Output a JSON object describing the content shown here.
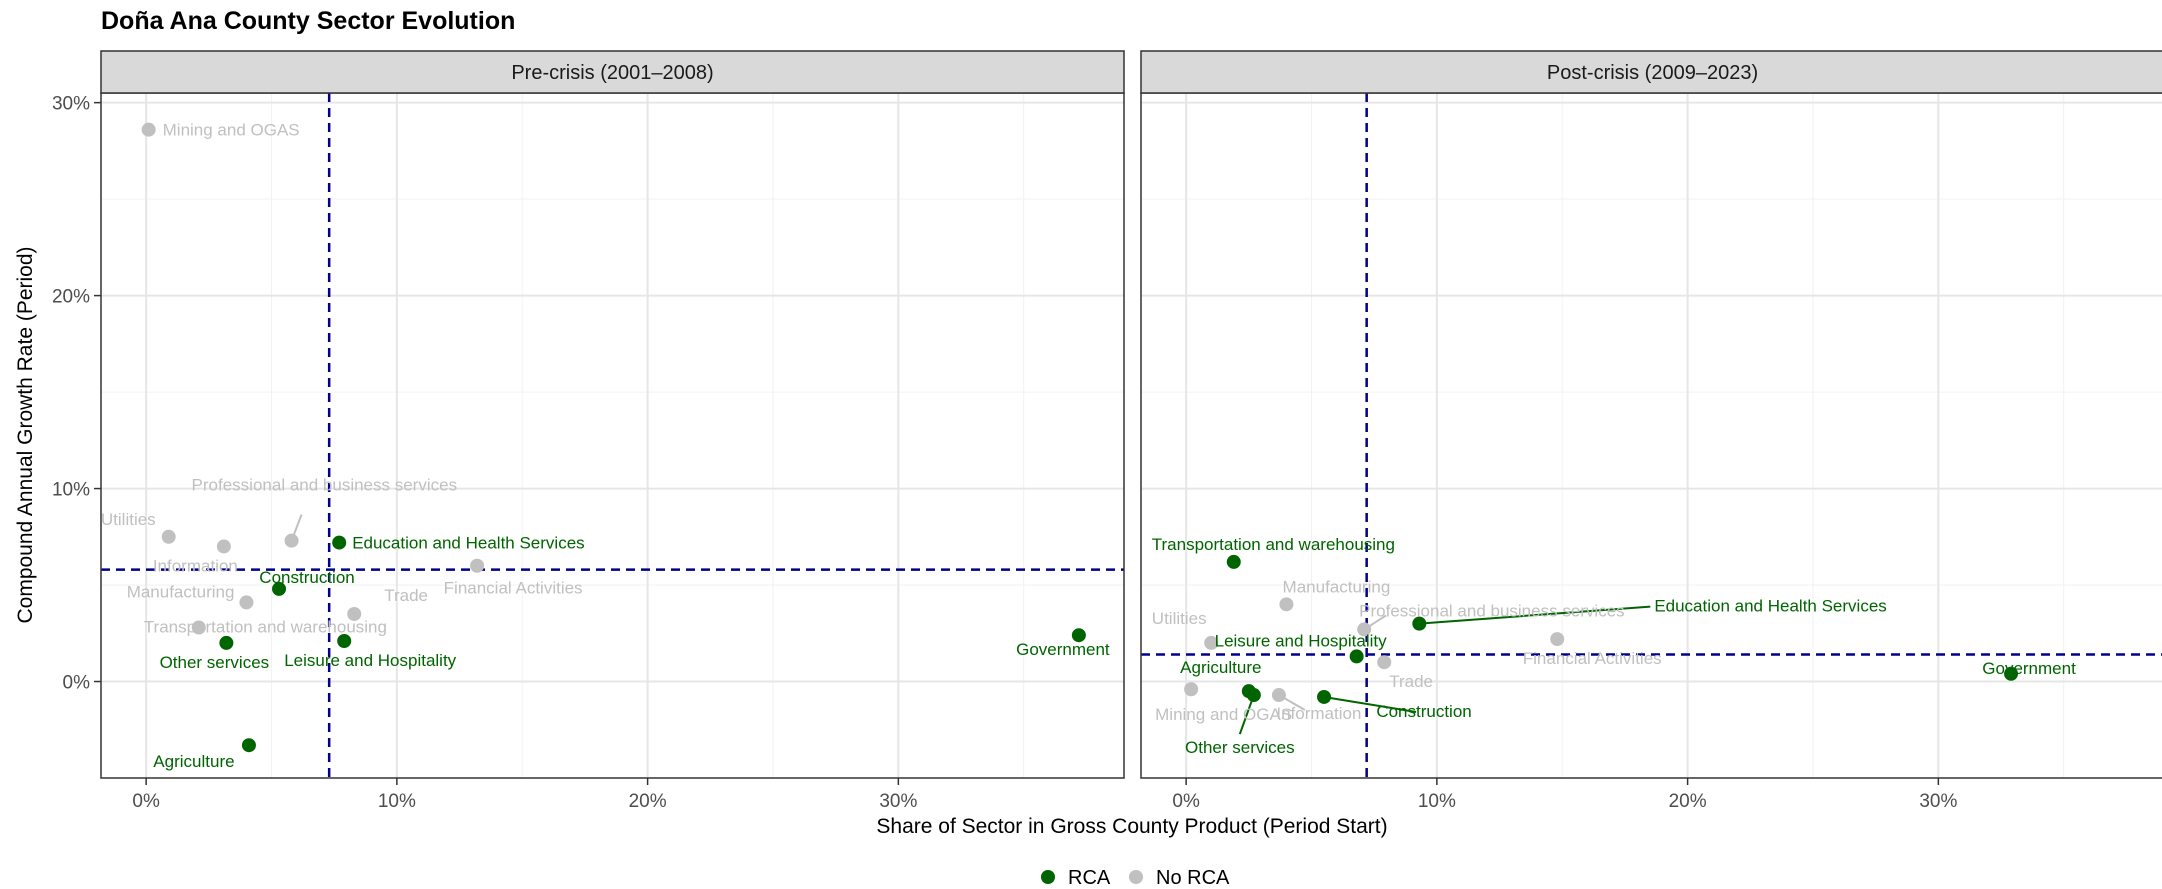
{
  "chart_data": {
    "type": "scatter",
    "title": "Doña Ana County Sector Evolution",
    "xlabel": "Share of Sector in Gross County Product (Period Start)",
    "ylabel": "Compound Annual Growth Rate (Period)",
    "x_ticks": [
      0,
      10,
      20,
      30
    ],
    "x_tick_labels": [
      "0%",
      "10%",
      "20%",
      "30%"
    ],
    "y_ticks": [
      0,
      10,
      20,
      30
    ],
    "y_tick_labels": [
      "0%",
      "10%",
      "20%",
      "30%"
    ],
    "xlim": [
      -1.8,
      39
    ],
    "ylim": [
      -5,
      30.5
    ],
    "grid": true,
    "legend": {
      "position": "bottom",
      "entries": [
        {
          "label": "RCA",
          "color": "#006400"
        },
        {
          "label": "No RCA",
          "color": "#c0c0c0"
        }
      ]
    },
    "colors": {
      "RCA": "#006400",
      "No RCA": "#c0c0c0",
      "reference_line": "#00008b"
    },
    "panels": [
      {
        "name": "Pre-crisis (2001–2008)",
        "ref_x": 7.3,
        "ref_y": 5.8,
        "points": [
          {
            "label": "Mining and OGAS",
            "x": 0.1,
            "y": 28.6,
            "group": "No RCA"
          },
          {
            "label": "Utilities",
            "x": 0.9,
            "y": 7.5,
            "group": "No RCA"
          },
          {
            "label": "Information",
            "x": 3.1,
            "y": 7.0,
            "group": "No RCA"
          },
          {
            "label": "Professional and business services",
            "x": 5.8,
            "y": 7.3,
            "group": "No RCA"
          },
          {
            "label": "Education and Health Services",
            "x": 7.7,
            "y": 7.2,
            "group": "RCA"
          },
          {
            "label": "Financial Activities",
            "x": 13.2,
            "y": 6.0,
            "group": "No RCA"
          },
          {
            "label": "Construction",
            "x": 5.3,
            "y": 4.8,
            "group": "RCA"
          },
          {
            "label": "Manufacturing",
            "x": 4.0,
            "y": 4.1,
            "group": "No RCA"
          },
          {
            "label": "Trade",
            "x": 8.3,
            "y": 3.5,
            "group": "No RCA"
          },
          {
            "label": "Transportation and warehousing",
            "x": 2.1,
            "y": 2.8,
            "group": "No RCA"
          },
          {
            "label": "Other services",
            "x": 3.2,
            "y": 2.0,
            "group": "RCA"
          },
          {
            "label": "Leisure and Hospitality",
            "x": 7.9,
            "y": 2.1,
            "group": "RCA"
          },
          {
            "label": "Government",
            "x": 37.2,
            "y": 2.4,
            "group": "RCA"
          },
          {
            "label": "Agriculture",
            "x": 4.1,
            "y": -3.3,
            "group": "RCA"
          }
        ]
      },
      {
        "name": "Post-crisis (2009–2023)",
        "ref_x": 7.2,
        "ref_y": 1.4,
        "points": [
          {
            "label": "Transportation and warehousing",
            "x": 1.9,
            "y": 6.2,
            "group": "RCA"
          },
          {
            "label": "Manufacturing",
            "x": 4.0,
            "y": 4.0,
            "group": "No RCA"
          },
          {
            "label": "Professional and business services",
            "x": 7.1,
            "y": 2.7,
            "group": "No RCA"
          },
          {
            "label": "Education and Health Services",
            "x": 9.3,
            "y": 3.0,
            "group": "RCA"
          },
          {
            "label": "Utilities",
            "x": 1.0,
            "y": 2.0,
            "group": "No RCA"
          },
          {
            "label": "Financial Activities",
            "x": 14.8,
            "y": 2.2,
            "group": "No RCA"
          },
          {
            "label": "Leisure and Hospitality",
            "x": 6.8,
            "y": 1.3,
            "group": "RCA"
          },
          {
            "label": "Trade",
            "x": 7.9,
            "y": 1.0,
            "group": "No RCA"
          },
          {
            "label": "Government",
            "x": 32.9,
            "y": 0.4,
            "group": "RCA"
          },
          {
            "label": "Agriculture",
            "x": 2.5,
            "y": -0.5,
            "group": "RCA"
          },
          {
            "label": "Mining and OGAS",
            "x": 0.2,
            "y": -0.4,
            "group": "No RCA"
          },
          {
            "label": "Information",
            "x": 3.7,
            "y": -0.7,
            "group": "No RCA"
          },
          {
            "label": "Other services",
            "x": 2.7,
            "y": -0.7,
            "group": "RCA"
          },
          {
            "label": "Construction",
            "x": 5.5,
            "y": -0.8,
            "group": "RCA"
          }
        ]
      }
    ]
  }
}
